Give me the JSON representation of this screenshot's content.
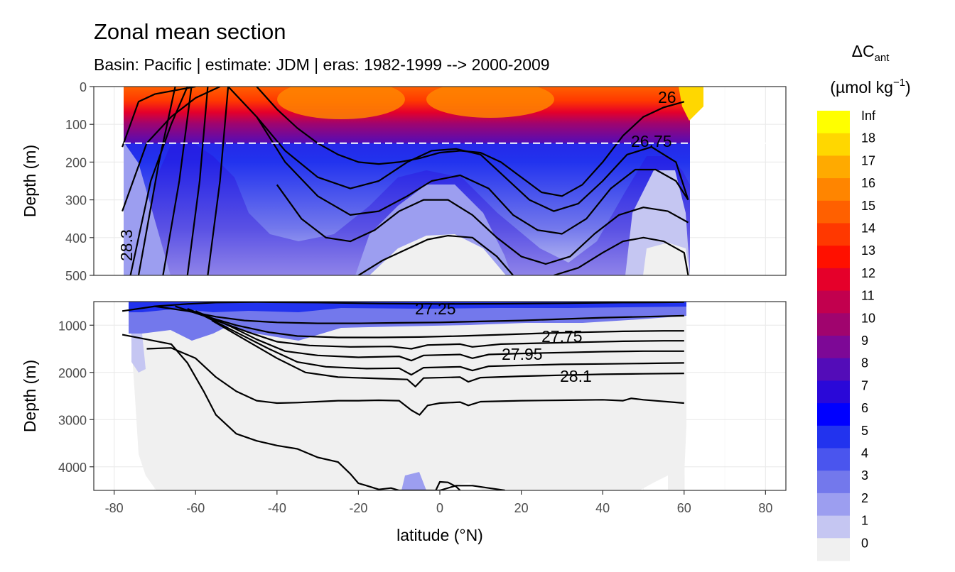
{
  "chart_data": {
    "type": "heatmap",
    "title": "Zonal mean section",
    "subtitle": "Basin: Pacific | estimate: JDM  | eras: 1982-1999 --> 2000-2009",
    "xlabel": "latitude (°N)",
    "ylabel": "Depth (m)",
    "xlim": [
      -85,
      85
    ],
    "x_ticks": [
      "-80",
      "-60",
      "-40",
      "-20",
      "0",
      "20",
      "40",
      "60",
      "80"
    ],
    "x_tick_values": [
      -80,
      -60,
      -40,
      -20,
      0,
      20,
      40,
      60,
      80
    ],
    "panels": [
      {
        "name": "upper",
        "ylim": [
          0,
          500
        ],
        "y_ticks": [
          "0",
          "100",
          "200",
          "300",
          "400",
          "500"
        ],
        "y_tick_values": [
          0,
          100,
          200,
          300,
          400,
          500
        ]
      },
      {
        "name": "lower",
        "ylim": [
          500,
          4500
        ],
        "y_ticks": [
          "1000",
          "2000",
          "3000",
          "4000"
        ],
        "y_tick_values": [
          1000,
          2000,
          3000,
          4000
        ]
      }
    ],
    "reference_line_depth": 150,
    "legend": {
      "title_main": "ΔC",
      "title_sub": "ant",
      "title_units": "(µmol kg",
      "title_units_exp": "−1",
      "title_units_end": ")",
      "position": "right",
      "labels": [
        "Inf",
        "18",
        "17",
        "16",
        "15",
        "14",
        "13",
        "12",
        "11",
        "10",
        "9",
        "8",
        "7",
        "6",
        "5",
        "4",
        "3",
        "2",
        "1",
        "0"
      ],
      "colors": [
        "#ffff00",
        "#ffd700",
        "#ffaa00",
        "#ff8500",
        "#ff6000",
        "#ff3800",
        "#ff1000",
        "#e5002a",
        "#c2004e",
        "#a0046e",
        "#7d0896",
        "#530cb8",
        "#2a08d8",
        "#0000ff",
        "#2233ee",
        "#4a55ee",
        "#7378ec",
        "#9c9ef0",
        "#c5c6f2",
        "#f0f0f0"
      ]
    },
    "contour_labels": [
      "26",
      "26.75",
      "27.25",
      "27.75",
      "27.95",
      "28.1",
      "28.3"
    ],
    "upper_contours": [
      {
        "lat": [
          -78,
          -74,
          -70,
          -65,
          -60
        ],
        "depth": [
          160,
          40,
          20,
          10,
          0
        ]
      },
      {
        "lat": [
          -78,
          -72,
          -66,
          -60,
          -54
        ],
        "depth": [
          330,
          150,
          80,
          30,
          0
        ]
      },
      {
        "lat": [
          -76,
          -71,
          -66,
          -62
        ],
        "depth": [
          500,
          250,
          100,
          0
        ]
      },
      {
        "lat": [
          -74,
          -69,
          -65
        ],
        "depth": [
          500,
          200,
          0
        ]
      },
      {
        "lat": [
          -68,
          -64,
          -61
        ],
        "depth": [
          500,
          250,
          0
        ]
      },
      {
        "lat": [
          -62,
          -59,
          -57
        ],
        "depth": [
          500,
          250,
          0
        ]
      },
      {
        "lat": [
          -57,
          -54,
          -52
        ],
        "depth": [
          500,
          250,
          0
        ]
      },
      {
        "lat": [
          -45,
          -40,
          -35,
          -30,
          -25,
          -20,
          -15,
          -10,
          -5,
          0,
          5,
          10,
          15,
          20,
          25,
          30,
          35,
          40,
          45,
          50,
          55,
          60
        ],
        "depth": [
          0,
          60,
          110,
          150,
          180,
          200,
          205,
          200,
          190,
          175,
          170,
          175,
          200,
          240,
          280,
          290,
          260,
          200,
          130,
          80,
          55,
          40
        ]
      },
      {
        "lat": [
          -52,
          -45,
          -38,
          -30,
          -22,
          -15,
          -8,
          -2,
          4,
          10,
          16,
          22,
          28,
          34,
          40,
          46,
          52,
          58,
          61
        ],
        "depth": [
          0,
          80,
          170,
          240,
          270,
          250,
          200,
          170,
          165,
          180,
          240,
          300,
          330,
          310,
          250,
          180,
          160,
          200,
          300
        ]
      },
      {
        "lat": [
          -45,
          -38,
          -30,
          -22,
          -15,
          -8,
          -2,
          5,
          12,
          18,
          24,
          30,
          36,
          42,
          48,
          53,
          58,
          61
        ],
        "depth": [
          80,
          200,
          290,
          340,
          330,
          290,
          250,
          235,
          270,
          340,
          380,
          390,
          350,
          270,
          220,
          220,
          250,
          300
        ]
      },
      {
        "lat": [
          -40,
          -34,
          -28,
          -22,
          -16,
          -10,
          -4,
          2,
          8,
          14,
          20,
          26,
          32,
          38,
          44,
          50,
          56,
          61
        ],
        "depth": [
          260,
          350,
          400,
          410,
          380,
          330,
          300,
          300,
          340,
          400,
          450,
          470,
          450,
          390,
          340,
          320,
          330,
          360
        ]
      },
      {
        "lat": [
          -20,
          -14,
          -8,
          -3,
          2,
          8,
          14,
          18
        ],
        "depth": [
          500,
          460,
          430,
          405,
          395,
          400,
          450,
          500
        ]
      },
      {
        "lat": [
          28,
          34,
          40,
          45,
          50,
          55,
          60,
          61
        ],
        "depth": [
          500,
          480,
          440,
          410,
          400,
          410,
          440,
          500
        ]
      }
    ],
    "lower_contours": [
      {
        "lat": [
          -78,
          -70,
          -62,
          -55,
          -45,
          -30,
          -15,
          0,
          15,
          30,
          45,
          55,
          60
        ],
        "depth": [
          700,
          600,
          550,
          520,
          510,
          520,
          540,
          550,
          545,
          535,
          520,
          515,
          510
        ]
      },
      {
        "lat": [
          -70,
          -62,
          -55,
          -48,
          -40,
          -30,
          -20,
          -10,
          0,
          10,
          20,
          30,
          40,
          50,
          60
        ],
        "depth": [
          600,
          700,
          820,
          900,
          940,
          960,
          960,
          950,
          940,
          920,
          900,
          870,
          840,
          820,
          800
        ]
      },
      {
        "lat": [
          -65,
          -58,
          -50,
          -42,
          -35,
          -25,
          -15,
          -5,
          5,
          15,
          25,
          35,
          45,
          55,
          60
        ],
        "depth": [
          600,
          800,
          1000,
          1150,
          1230,
          1260,
          1260,
          1250,
          1230,
          1200,
          1170,
          1150,
          1130,
          1120,
          1120
        ]
      },
      {
        "lat": [
          -62,
          -55,
          -47,
          -40,
          -32,
          -22,
          -12,
          -7,
          -3,
          5,
          8,
          15,
          25,
          35,
          45,
          55,
          60
        ],
        "depth": [
          650,
          900,
          1150,
          1350,
          1430,
          1460,
          1450,
          1500,
          1420,
          1400,
          1460,
          1400,
          1380,
          1360,
          1340,
          1330,
          1330
        ]
      },
      {
        "lat": [
          -60,
          -52,
          -45,
          -38,
          -30,
          -20,
          -10,
          -7,
          -4,
          5,
          8,
          12,
          20,
          30,
          40,
          50,
          60
        ],
        "depth": [
          700,
          1000,
          1300,
          1550,
          1640,
          1680,
          1660,
          1750,
          1640,
          1620,
          1700,
          1620,
          1600,
          1580,
          1560,
          1550,
          1550
        ]
      },
      {
        "lat": [
          -58,
          -50,
          -42,
          -35,
          -28,
          -18,
          -10,
          -7,
          -4,
          5,
          8,
          12,
          20,
          30,
          40,
          50,
          60
        ],
        "depth": [
          800,
          1150,
          1500,
          1780,
          1880,
          1920,
          1910,
          2050,
          1900,
          1880,
          1960,
          1870,
          1850,
          1830,
          1820,
          1810,
          1800
        ]
      },
      {
        "lat": [
          -56,
          -48,
          -40,
          -33,
          -25,
          -15,
          -8,
          -6,
          -4,
          5,
          7,
          10,
          20,
          30,
          40,
          50,
          60
        ],
        "depth": [
          900,
          1300,
          1700,
          2000,
          2100,
          2130,
          2150,
          2300,
          2120,
          2100,
          2200,
          2110,
          2080,
          2060,
          2040,
          2030,
          2020
        ]
      },
      {
        "lat": [
          -72,
          -66,
          -60,
          -55,
          -50,
          -45,
          -40,
          -35,
          -30,
          -25,
          -20,
          -15,
          -10,
          -7,
          -5,
          -3,
          0,
          5,
          7,
          10,
          20,
          30,
          40,
          45,
          47,
          50,
          60
        ],
        "depth": [
          1500,
          1480,
          1700,
          2100,
          2400,
          2600,
          2650,
          2640,
          2620,
          2600,
          2600,
          2590,
          2600,
          2800,
          2900,
          2700,
          2650,
          2630,
          2700,
          2620,
          2600,
          2590,
          2580,
          2600,
          2550,
          2580,
          2650
        ]
      },
      {
        "lat": [
          -78,
          -72,
          -66,
          -62,
          -58,
          -55,
          -50,
          -45,
          -40,
          -35,
          -30,
          -25,
          -22,
          -20,
          -18,
          -15,
          -12,
          -10,
          -5,
          0,
          4,
          8,
          12,
          16
        ],
        "depth": [
          1200,
          1300,
          1400,
          1800,
          2400,
          2900,
          3300,
          3450,
          3550,
          3620,
          3800,
          3900,
          4150,
          4350,
          4400,
          4480,
          4450,
          4500,
          4500,
          4500,
          4400,
          4400,
          4450,
          4500
        ]
      },
      {
        "lat": [
          -1,
          0,
          2,
          4,
          5
        ],
        "depth": [
          4500,
          4320,
          4330,
          4420,
          4500
        ]
      }
    ]
  }
}
